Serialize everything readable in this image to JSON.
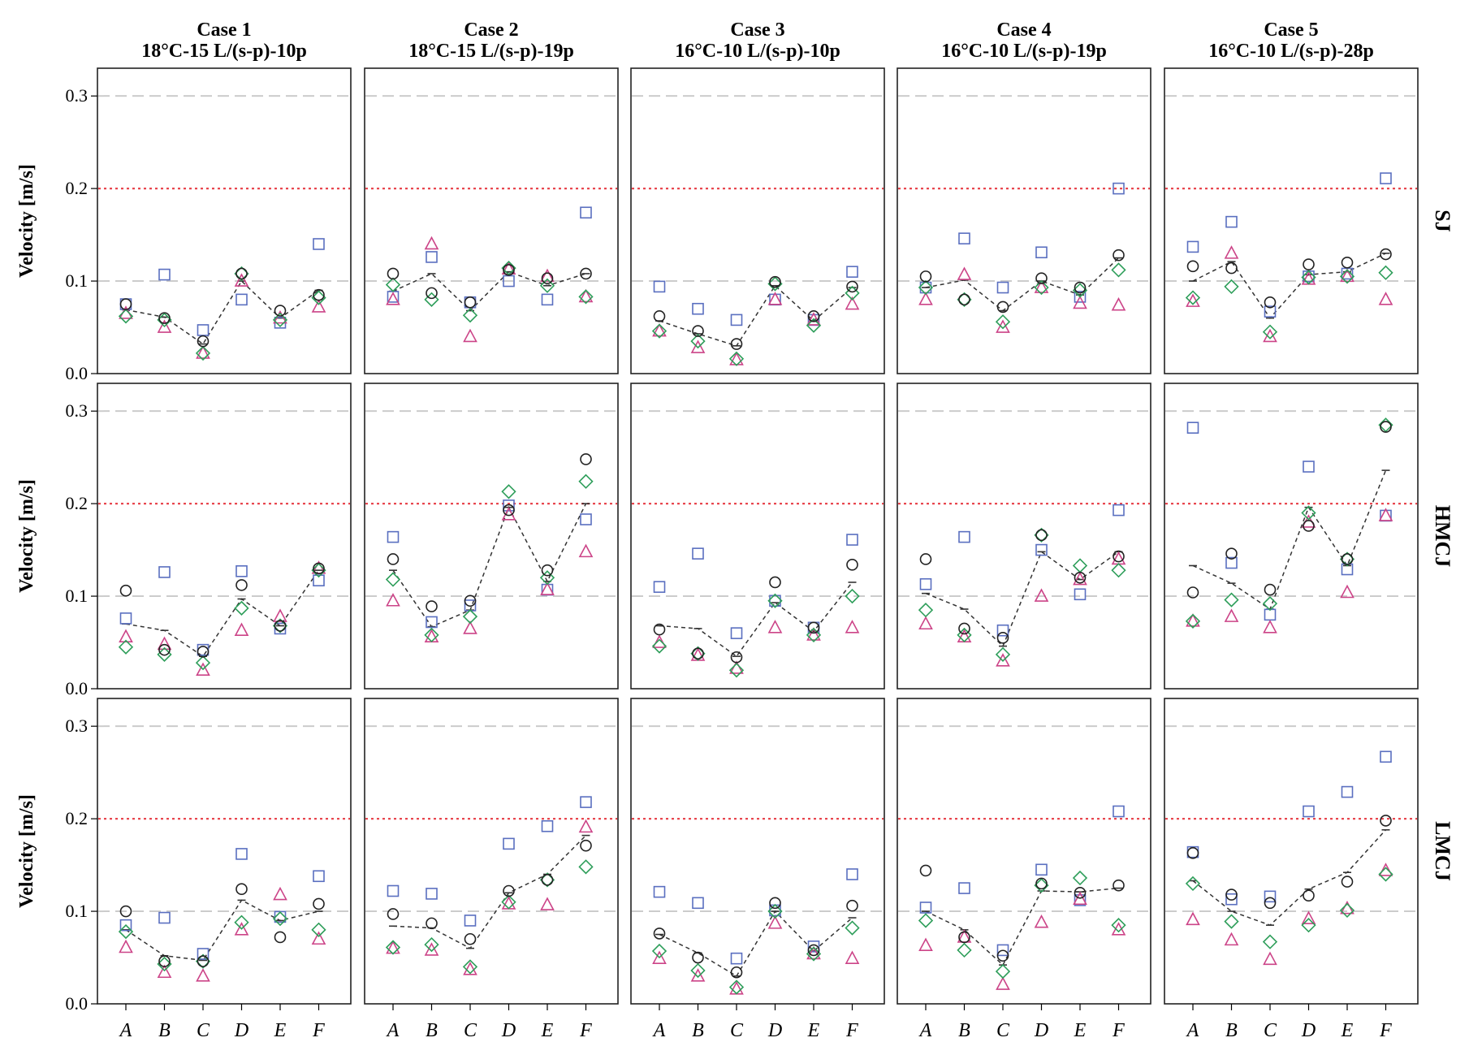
{
  "chart_data": {
    "type": "scatter",
    "yaxis_label": "Velocity [m/s]",
    "ylim": [
      0,
      0.33
    ],
    "yticks": [
      "0.0",
      "0.1",
      "0.2",
      "0.3"
    ],
    "categories": [
      "A",
      "B",
      "C",
      "D",
      "E",
      "F"
    ],
    "reference_lines": [
      {
        "y": 0.2,
        "style": "dotted",
        "color": "#e8474f"
      },
      {
        "y": 0.1,
        "style": "dashed",
        "color": "#cccccc"
      },
      {
        "y": 0.3,
        "style": "dashed",
        "color": "#cccccc"
      }
    ],
    "cases": [
      {
        "title": "Case 1",
        "subtitle": "18°C-15 L/(s-p)-10p"
      },
      {
        "title": "Case 2",
        "subtitle": "18°C-15 L/(s-p)-19p"
      },
      {
        "title": "Case 3",
        "subtitle": "16°C-10 L/(s-p)-10p"
      },
      {
        "title": "Case 4",
        "subtitle": "16°C-10 L/(s-p)-19p"
      },
      {
        "title": "Case 5",
        "subtitle": "16°C-10 L/(s-p)-28p"
      }
    ],
    "rows": [
      "SJ",
      "HMCJ",
      "LMCJ"
    ],
    "marker_colors": {
      "circle": "#222222",
      "square": "#5a6fc0",
      "triangle": "#cc4488",
      "diamond": "#2e9e5a",
      "mean_line": "#333333"
    },
    "panels": [
      [
        {
          "circle": [
            0.075,
            0.06,
            0.035,
            0.108,
            0.068,
            0.085
          ],
          "square": [
            0.075,
            0.107,
            0.047,
            0.08,
            0.055,
            0.14
          ],
          "triangle": [
            0.065,
            0.05,
            0.022,
            0.1,
            0.06,
            0.072
          ],
          "diamond": [
            0.062,
            0.058,
            0.022,
            0.108,
            0.058,
            0.082
          ],
          "mean": [
            0.069,
            0.061,
            0.032,
            0.1,
            0.06,
            0.09
          ]
        },
        {
          "circle": [
            0.108,
            0.087,
            0.077,
            0.112,
            0.103,
            0.108
          ],
          "square": [
            0.083,
            0.126,
            0.077,
            0.1,
            0.08,
            0.174
          ],
          "triangle": [
            0.08,
            0.14,
            0.04,
            0.113,
            0.105,
            0.083
          ],
          "diamond": [
            0.096,
            0.08,
            0.063,
            0.114,
            0.095,
            0.083
          ],
          "mean": [
            0.089,
            0.108,
            0.068,
            0.11,
            0.095,
            0.108
          ]
        },
        {
          "circle": [
            0.062,
            0.046,
            0.032,
            0.099,
            0.062,
            0.094
          ],
          "square": [
            0.094,
            0.07,
            0.058,
            0.08,
            0.058,
            0.11
          ],
          "triangle": [
            0.046,
            0.028,
            0.015,
            0.08,
            0.058,
            0.075
          ],
          "diamond": [
            0.046,
            0.035,
            0.016,
            0.097,
            0.052,
            0.087
          ],
          "mean": [
            0.057,
            0.043,
            0.03,
            0.095,
            0.057,
            0.093
          ]
        },
        {
          "circle": [
            0.105,
            0.08,
            0.072,
            0.103,
            0.093,
            0.128
          ],
          "square": [
            0.093,
            0.146,
            0.093,
            0.131,
            0.083,
            0.2
          ],
          "triangle": [
            0.08,
            0.107,
            0.05,
            0.093,
            0.076,
            0.074
          ],
          "diamond": [
            0.093,
            0.08,
            0.056,
            0.093,
            0.09,
            0.112
          ],
          "mean": [
            0.093,
            0.101,
            0.068,
            0.1,
            0.085,
            0.125
          ]
        },
        {
          "circle": [
            0.116,
            0.114,
            0.077,
            0.118,
            0.12,
            0.129
          ],
          "square": [
            0.137,
            0.164,
            0.067,
            0.105,
            0.108,
            0.211
          ],
          "triangle": [
            0.078,
            0.13,
            0.04,
            0.102,
            0.105,
            0.08
          ],
          "diamond": [
            0.082,
            0.094,
            0.045,
            0.104,
            0.105,
            0.109
          ],
          "mean": [
            0.1,
            0.121,
            0.06,
            0.107,
            0.11,
            0.13
          ]
        }
      ],
      [
        {
          "circle": [
            0.106,
            0.042,
            0.04,
            0.112,
            0.068,
            0.13
          ],
          "square": [
            0.076,
            0.126,
            0.042,
            0.127,
            0.065,
            0.117
          ],
          "triangle": [
            0.056,
            0.048,
            0.02,
            0.063,
            0.078,
            0.13
          ],
          "diamond": [
            0.045,
            0.037,
            0.028,
            0.087,
            0.068,
            0.128
          ],
          "mean": [
            0.07,
            0.063,
            0.035,
            0.097,
            0.068,
            0.128
          ]
        },
        {
          "circle": [
            0.14,
            0.089,
            0.095,
            0.193,
            0.128,
            0.248
          ],
          "square": [
            0.164,
            0.072,
            0.09,
            0.198,
            0.107,
            0.183
          ],
          "triangle": [
            0.095,
            0.056,
            0.065,
            0.188,
            0.107,
            0.148
          ],
          "diamond": [
            0.118,
            0.058,
            0.078,
            0.213,
            0.12,
            0.224
          ],
          "mean": [
            0.128,
            0.067,
            0.085,
            0.196,
            0.116,
            0.2
          ]
        },
        {
          "circle": [
            0.064,
            0.038,
            0.034,
            0.115,
            0.066,
            0.134
          ],
          "square": [
            0.11,
            0.146,
            0.06,
            0.095,
            0.066,
            0.161
          ],
          "triangle": [
            0.05,
            0.036,
            0.022,
            0.066,
            0.058,
            0.066
          ],
          "diamond": [
            0.046,
            0.038,
            0.02,
            0.095,
            0.058,
            0.1
          ],
          "mean": [
            0.068,
            0.065,
            0.035,
            0.093,
            0.062,
            0.115
          ]
        },
        {
          "circle": [
            0.14,
            0.065,
            0.055,
            0.166,
            0.12,
            0.143
          ],
          "square": [
            0.113,
            0.164,
            0.063,
            0.15,
            0.102,
            0.193
          ],
          "triangle": [
            0.07,
            0.056,
            0.03,
            0.1,
            0.118,
            0.14
          ],
          "diamond": [
            0.085,
            0.058,
            0.037,
            0.166,
            0.133,
            0.128
          ],
          "mean": [
            0.103,
            0.086,
            0.046,
            0.148,
            0.118,
            0.148
          ]
        },
        {
          "circle": [
            0.104,
            0.146,
            0.107,
            0.176,
            0.14,
            0.283
          ],
          "square": [
            0.282,
            0.136,
            0.08,
            0.24,
            0.129,
            0.187
          ],
          "triangle": [
            0.073,
            0.078,
            0.066,
            0.18,
            0.104,
            0.187
          ],
          "diamond": [
            0.073,
            0.096,
            0.092,
            0.19,
            0.14,
            0.285
          ],
          "mean": [
            0.133,
            0.114,
            0.086,
            0.196,
            0.133,
            0.236
          ]
        }
      ],
      [
        {
          "circle": [
            0.1,
            0.046,
            0.046,
            0.124,
            0.072,
            0.108
          ],
          "square": [
            0.085,
            0.093,
            0.054,
            0.162,
            0.094,
            0.138
          ],
          "triangle": [
            0.061,
            0.034,
            0.03,
            0.08,
            0.118,
            0.07
          ],
          "diamond": [
            0.078,
            0.043,
            0.046,
            0.088,
            0.092,
            0.08
          ],
          "mean": [
            0.08,
            0.052,
            0.047,
            0.112,
            0.09,
            0.1
          ]
        },
        {
          "circle": [
            0.097,
            0.087,
            0.07,
            0.122,
            0.134,
            0.171
          ],
          "square": [
            0.122,
            0.119,
            0.09,
            0.173,
            0.192,
            0.218
          ],
          "triangle": [
            0.06,
            0.058,
            0.037,
            0.108,
            0.107,
            0.191
          ],
          "diamond": [
            0.061,
            0.064,
            0.04,
            0.11,
            0.134,
            0.148
          ],
          "mean": [
            0.084,
            0.082,
            0.06,
            0.12,
            0.14,
            0.182
          ]
        },
        {
          "circle": [
            0.076,
            0.05,
            0.034,
            0.109,
            0.058,
            0.106
          ],
          "square": [
            0.121,
            0.109,
            0.049,
            0.101,
            0.062,
            0.14
          ],
          "triangle": [
            0.049,
            0.03,
            0.016,
            0.087,
            0.054,
            0.049
          ],
          "diamond": [
            0.057,
            0.036,
            0.018,
            0.1,
            0.054,
            0.082
          ],
          "mean": [
            0.075,
            0.055,
            0.03,
            0.1,
            0.057,
            0.093
          ]
        },
        {
          "circle": [
            0.144,
            0.072,
            0.052,
            0.13,
            0.12,
            0.128
          ],
          "square": [
            0.104,
            0.125,
            0.058,
            0.145,
            0.112,
            0.208
          ],
          "triangle": [
            0.063,
            0.072,
            0.021,
            0.088,
            0.113,
            0.08
          ],
          "diamond": [
            0.09,
            0.058,
            0.035,
            0.128,
            0.136,
            0.085
          ],
          "mean": [
            0.1,
            0.08,
            0.042,
            0.122,
            0.121,
            0.125
          ]
        },
        {
          "circle": [
            0.163,
            0.118,
            0.109,
            0.117,
            0.132,
            0.198
          ],
          "square": [
            0.164,
            0.113,
            0.116,
            0.208,
            0.229,
            0.267
          ],
          "triangle": [
            0.091,
            0.069,
            0.048,
            0.092,
            0.103,
            0.144
          ],
          "diamond": [
            0.13,
            0.089,
            0.067,
            0.085,
            0.101,
            0.14
          ],
          "mean": [
            0.133,
            0.1,
            0.085,
            0.124,
            0.142,
            0.188
          ]
        }
      ]
    ]
  }
}
